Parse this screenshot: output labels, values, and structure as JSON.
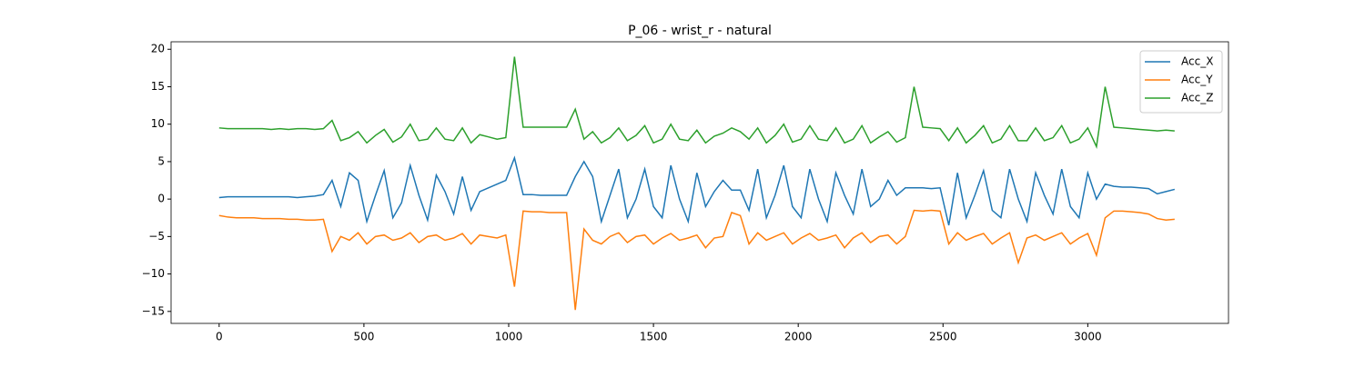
{
  "chart_data": {
    "type": "line",
    "title": "P_06 - wrist_r - natural",
    "x": [
      0,
      30,
      60,
      90,
      120,
      150,
      180,
      210,
      240,
      270,
      300,
      330,
      360,
      390,
      420,
      450,
      480,
      510,
      540,
      570,
      600,
      630,
      660,
      690,
      720,
      750,
      780,
      810,
      840,
      870,
      900,
      930,
      960,
      990,
      1020,
      1050,
      1080,
      1110,
      1140,
      1170,
      1200,
      1230,
      1260,
      1290,
      1320,
      1350,
      1380,
      1410,
      1440,
      1470,
      1500,
      1530,
      1560,
      1590,
      1620,
      1650,
      1680,
      1710,
      1740,
      1770,
      1800,
      1830,
      1860,
      1890,
      1920,
      1950,
      1980,
      2010,
      2040,
      2070,
      2100,
      2130,
      2160,
      2190,
      2220,
      2250,
      2280,
      2310,
      2340,
      2370,
      2400,
      2430,
      2460,
      2490,
      2520,
      2550,
      2580,
      2610,
      2640,
      2670,
      2700,
      2730,
      2760,
      2790,
      2820,
      2850,
      2880,
      2910,
      2940,
      2970,
      3000,
      3030,
      3060,
      3090,
      3120,
      3150,
      3180,
      3210,
      3240,
      3270,
      3300
    ],
    "series": [
      {
        "name": "Acc_X",
        "color": "#1f77b4",
        "values": [
          0.2,
          0.3,
          0.3,
          0.3,
          0.3,
          0.3,
          0.3,
          0.3,
          0.3,
          0.2,
          0.3,
          0.4,
          0.6,
          2.5,
          -1.0,
          3.5,
          2.5,
          -3.0,
          0.5,
          3.8,
          -2.5,
          -0.5,
          4.5,
          0.5,
          -2.8,
          3.2,
          1.0,
          -2.0,
          3.0,
          -1.5,
          1.0,
          1.5,
          2.0,
          2.5,
          5.5,
          0.6,
          0.6,
          0.5,
          0.5,
          0.5,
          0.5,
          3.0,
          5.0,
          3.0,
          -3.0,
          0.5,
          4.0,
          -2.5,
          0.0,
          4.0,
          -1.0,
          -2.5,
          4.5,
          0.0,
          -3.0,
          3.5,
          -1.0,
          1.0,
          2.5,
          1.2,
          1.2,
          -1.5,
          4.0,
          -2.5,
          0.5,
          4.5,
          -1.0,
          -2.5,
          4.0,
          0.0,
          -3.0,
          3.5,
          0.5,
          -2.0,
          4.0,
          -1.0,
          0.0,
          2.5,
          0.5,
          1.5,
          1.5,
          1.5,
          1.4,
          1.5,
          -3.5,
          3.5,
          -2.5,
          0.5,
          3.8,
          -1.5,
          -2.5,
          4.0,
          0.0,
          -3.0,
          3.5,
          0.5,
          -2.0,
          4.0,
          -1.0,
          -2.5,
          3.5,
          0.0,
          2.0,
          1.7,
          1.6,
          1.6,
          1.5,
          1.4,
          0.7,
          1.0,
          1.3
        ]
      },
      {
        "name": "Acc_Y",
        "color": "#ff7f0e",
        "values": [
          -2.2,
          -2.4,
          -2.5,
          -2.5,
          -2.5,
          -2.6,
          -2.6,
          -2.6,
          -2.7,
          -2.7,
          -2.8,
          -2.8,
          -2.7,
          -7.0,
          -5.0,
          -5.5,
          -4.5,
          -6.0,
          -5.0,
          -4.8,
          -5.5,
          -5.2,
          -4.5,
          -5.8,
          -5.0,
          -4.8,
          -5.5,
          -5.2,
          -4.6,
          -6.0,
          -4.8,
          -5.0,
          -5.2,
          -4.8,
          -11.7,
          -1.6,
          -1.7,
          -1.7,
          -1.8,
          -1.8,
          -1.8,
          -14.8,
          -4.0,
          -5.5,
          -6.0,
          -5.0,
          -4.5,
          -5.8,
          -5.0,
          -4.8,
          -6.0,
          -5.2,
          -4.6,
          -5.5,
          -5.2,
          -4.8,
          -6.5,
          -5.2,
          -5.0,
          -1.8,
          -2.2,
          -6.0,
          -4.5,
          -5.5,
          -5.0,
          -4.5,
          -6.0,
          -5.2,
          -4.6,
          -5.5,
          -5.2,
          -4.8,
          -6.5,
          -5.2,
          -4.5,
          -5.8,
          -5.0,
          -4.8,
          -6.0,
          -5.0,
          -1.5,
          -1.6,
          -1.5,
          -1.6,
          -6.0,
          -4.5,
          -5.5,
          -5.0,
          -4.6,
          -6.0,
          -5.2,
          -4.5,
          -8.5,
          -5.2,
          -4.8,
          -5.5,
          -5.0,
          -4.5,
          -6.0,
          -5.2,
          -4.6,
          -7.5,
          -2.5,
          -1.6,
          -1.6,
          -1.7,
          -1.8,
          -2.0,
          -2.6,
          -2.8,
          -2.7
        ]
      },
      {
        "name": "Acc_Z",
        "color": "#2ca02c",
        "values": [
          9.5,
          9.4,
          9.4,
          9.4,
          9.4,
          9.4,
          9.3,
          9.4,
          9.3,
          9.4,
          9.4,
          9.3,
          9.4,
          10.5,
          7.8,
          8.2,
          9.0,
          7.5,
          8.5,
          9.3,
          7.6,
          8.3,
          10.0,
          7.8,
          8.0,
          9.5,
          8.0,
          7.8,
          9.5,
          7.5,
          8.6,
          8.3,
          8.0,
          8.2,
          19.0,
          9.6,
          9.6,
          9.6,
          9.6,
          9.6,
          9.6,
          12.0,
          8.0,
          9.0,
          7.5,
          8.2,
          9.5,
          7.8,
          8.5,
          9.8,
          7.5,
          8.0,
          10.0,
          8.0,
          7.8,
          9.2,
          7.5,
          8.4,
          8.8,
          9.5,
          9.0,
          8.0,
          9.5,
          7.5,
          8.5,
          10.0,
          7.6,
          8.0,
          9.8,
          8.0,
          7.8,
          9.5,
          7.5,
          8.0,
          9.8,
          7.5,
          8.3,
          9.0,
          7.6,
          8.2,
          15.0,
          9.6,
          9.5,
          9.4,
          7.8,
          9.5,
          7.5,
          8.5,
          9.8,
          7.5,
          8.0,
          9.8,
          7.8,
          7.8,
          9.5,
          7.8,
          8.2,
          9.8,
          7.5,
          8.0,
          9.5,
          7.0,
          15.0,
          9.6,
          9.5,
          9.4,
          9.3,
          9.2,
          9.1,
          9.2,
          9.1
        ]
      }
    ],
    "xlim": [
      -166,
      3486
    ],
    "ylim": [
      -16.6,
      21.0
    ],
    "xticks": [
      0,
      500,
      1000,
      1500,
      2000,
      2500,
      3000
    ],
    "yticks": [
      {
        "value": -15,
        "label": "−15"
      },
      {
        "value": -10,
        "label": "−10"
      },
      {
        "value": -5,
        "label": "−5"
      },
      0,
      5,
      10,
      15,
      20
    ],
    "legend": "upper right"
  }
}
